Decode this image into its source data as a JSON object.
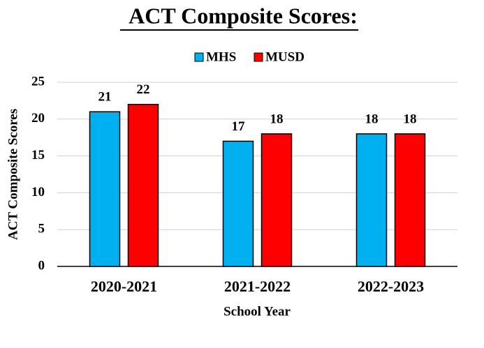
{
  "chart_data": {
    "type": "bar",
    "title": "ACT Composite Scores:",
    "categories": [
      "2020-2021",
      "2021-2022",
      "2022-2023"
    ],
    "series": [
      {
        "name": "MHS",
        "color": "#00b0f0",
        "values": [
          21,
          17,
          18
        ]
      },
      {
        "name": "MUSD",
        "color": "#ff0000",
        "values": [
          22,
          18,
          18
        ]
      }
    ],
    "x_label": "School Year",
    "y_label": "ACT Composite Scores",
    "ylim": [
      0,
      25
    ],
    "yticks": [
      0,
      5,
      10,
      15,
      20,
      25
    ],
    "grid": true,
    "legend": "top"
  }
}
